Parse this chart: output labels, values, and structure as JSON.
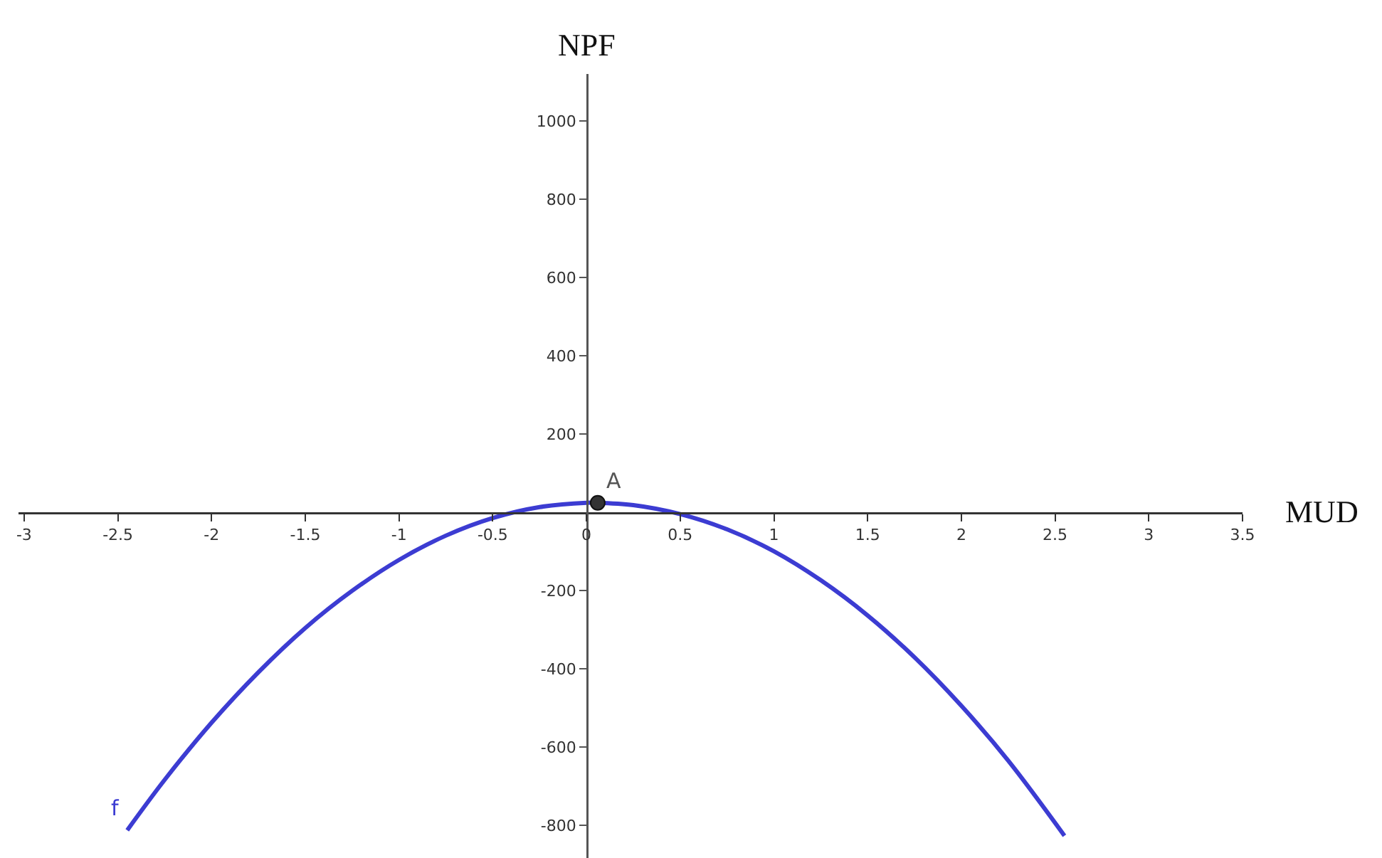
{
  "chart_data": {
    "type": "line",
    "xlabel": "MUD",
    "ylabel": "NPF",
    "xlim": [
      -3.03,
      3.5
    ],
    "ylim": [
      -884,
      1120
    ],
    "xticks": [
      -3,
      -2.5,
      -2,
      -1.5,
      -1,
      -0.5,
      0,
      0.5,
      1,
      1.5,
      2,
      2.5,
      3,
      3.5
    ],
    "yticks": [
      -800,
      -600,
      -400,
      -200,
      200,
      400,
      600,
      800,
      1000
    ],
    "series": [
      {
        "type": "line",
        "name": "f",
        "color": "#3c3cd2",
        "x": [
          -2.45,
          -2.25,
          -2,
          -1.75,
          -1.5,
          -1.25,
          -1,
          -0.75,
          -0.5,
          -0.25,
          0,
          0.04,
          0.25,
          0.5,
          0.75,
          1,
          1.25,
          1.5,
          1.75,
          2,
          2.25,
          2.55
        ],
        "values": [
          -813,
          -684,
          -538,
          -409,
          -296,
          -201,
          -122,
          -60,
          -15,
          13,
          24,
          24,
          18,
          -5,
          -44,
          -100,
          -174,
          -264,
          -371,
          -495,
          -635,
          -827
        ]
      },
      {
        "type": "scatter",
        "name": "A",
        "color": "#333333",
        "marker": "circle",
        "x": [
          0.06
        ],
        "values": [
          24
        ]
      }
    ]
  }
}
